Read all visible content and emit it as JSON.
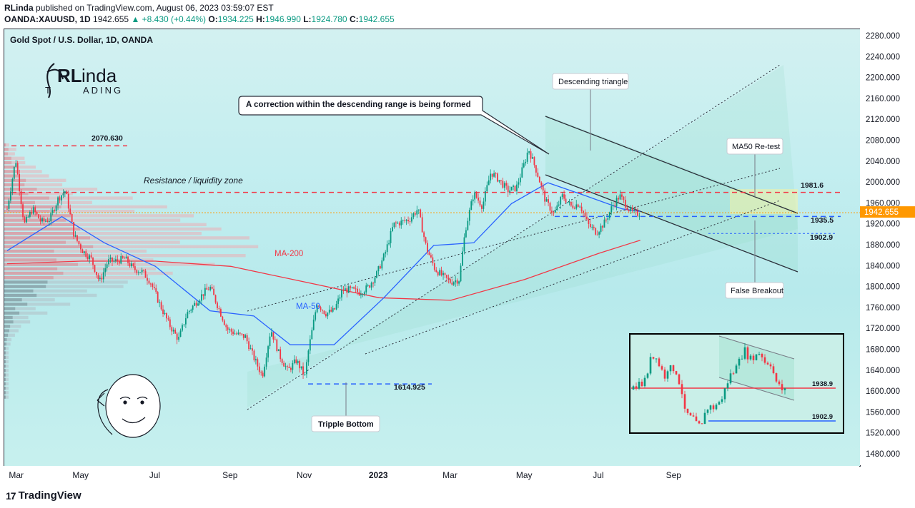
{
  "header": {
    "author": "RLinda",
    "published_text": "published on TradingView.com, August 06, 2023 03:59:07 EST",
    "symbol": "OANDA:XAUUSD, 1D",
    "last_price": "1942.655",
    "change": "▲ +8.430 (+0.44%)",
    "open_label": "O:",
    "open": "1934.225",
    "high_label": "H:",
    "high": "1946.990",
    "low_label": "L:",
    "low": "1924.780",
    "close_label": "C:",
    "close": "1942.655"
  },
  "chart_title": "Gold Spot / U.S. Dollar, 1D, OANDA",
  "logo": {
    "line1": "RLinda",
    "line2": "TRADING"
  },
  "footer_brand": "TradingView",
  "colors": {
    "up": "#089981",
    "down": "#f23645",
    "ma50": "#2962ff",
    "ma200": "#f23645",
    "price_tag": "#ff9800"
  },
  "annotations": {
    "correction_box": "A correction within the descending range is being formed",
    "descending_triangle": "Descending triangle",
    "ma50_retest": "MA50 Re-test",
    "false_breakout": "False Breakout",
    "triple_bottom": "Tripple Bottom",
    "resistance_zone": "Resistance / liquidity zone",
    "ma200_label": "MA-200",
    "ma50_label": "MA-50",
    "level_2070": "2070.630",
    "level_1981": "1981.6",
    "level_1935": "1935.5",
    "level_1902": "1902.9",
    "level_1614": "1614.925",
    "inset_1938": "1938.9",
    "inset_1902": "1902.9"
  },
  "chart_data": {
    "type": "candlestick",
    "symbol": "XAUUSD",
    "timeframe": "1D",
    "x_ticks": [
      "Mar",
      "May",
      "Jul",
      "Sep",
      "Nov",
      "2023",
      "Mar",
      "May",
      "Jul",
      "Sep"
    ],
    "y_ticks": [
      "2280.000",
      "2240.000",
      "2200.000",
      "2160.000",
      "2120.000",
      "2080.000",
      "2040.000",
      "2000.000",
      "1960.000",
      "1920.000",
      "1880.000",
      "1840.000",
      "1800.000",
      "1760.000",
      "1720.000",
      "1680.000",
      "1640.000",
      "1600.000",
      "1560.000",
      "1520.000",
      "1480.000"
    ],
    "ylim": [
      1460,
      2290
    ],
    "last_price_label": "1942.655",
    "price_path": [
      [
        "2022-03-01",
        1950
      ],
      [
        "2022-03-08",
        2045
      ],
      [
        "2022-03-15",
        1920
      ],
      [
        "2022-03-22",
        1950
      ],
      [
        "2022-03-29",
        1925
      ],
      [
        "2022-04-05",
        1930
      ],
      [
        "2022-04-12",
        1970
      ],
      [
        "2022-04-18",
        1985
      ],
      [
        "2022-04-25",
        1900
      ],
      [
        "2022-05-02",
        1870
      ],
      [
        "2022-05-09",
        1855
      ],
      [
        "2022-05-16",
        1810
      ],
      [
        "2022-05-23",
        1850
      ],
      [
        "2022-05-30",
        1850
      ],
      [
        "2022-06-06",
        1855
      ],
      [
        "2022-06-13",
        1835
      ],
      [
        "2022-06-20",
        1830
      ],
      [
        "2022-06-27",
        1810
      ],
      [
        "2022-07-05",
        1765
      ],
      [
        "2022-07-12",
        1730
      ],
      [
        "2022-07-20",
        1700
      ],
      [
        "2022-07-27",
        1750
      ],
      [
        "2022-08-03",
        1770
      ],
      [
        "2022-08-10",
        1790
      ],
      [
        "2022-08-15",
        1800
      ],
      [
        "2022-08-22",
        1760
      ],
      [
        "2022-08-29",
        1720
      ],
      [
        "2022-09-06",
        1710
      ],
      [
        "2022-09-13",
        1705
      ],
      [
        "2022-09-20",
        1665
      ],
      [
        "2022-09-27",
        1630
      ],
      [
        "2022-10-04",
        1720
      ],
      [
        "2022-10-11",
        1670
      ],
      [
        "2022-10-18",
        1640
      ],
      [
        "2022-10-25",
        1660
      ],
      [
        "2022-11-01",
        1630
      ],
      [
        "2022-11-04",
        1680
      ],
      [
        "2022-11-11",
        1770
      ],
      [
        "2022-11-18",
        1750
      ],
      [
        "2022-11-25",
        1755
      ],
      [
        "2022-12-02",
        1795
      ],
      [
        "2022-12-09",
        1795
      ],
      [
        "2022-12-16",
        1790
      ],
      [
        "2022-12-23",
        1800
      ],
      [
        "2022-12-30",
        1825
      ],
      [
        "2023-01-06",
        1865
      ],
      [
        "2023-01-13",
        1920
      ],
      [
        "2023-01-20",
        1925
      ],
      [
        "2023-01-26",
        1930
      ],
      [
        "2023-02-02",
        1950
      ],
      [
        "2023-02-09",
        1875
      ],
      [
        "2023-02-16",
        1835
      ],
      [
        "2023-02-23",
        1820
      ],
      [
        "2023-03-01",
        1810
      ],
      [
        "2023-03-08",
        1815
      ],
      [
        "2023-03-13",
        1910
      ],
      [
        "2023-03-20",
        1980
      ],
      [
        "2023-03-27",
        1955
      ],
      [
        "2023-04-03",
        2020
      ],
      [
        "2023-04-10",
        2005
      ],
      [
        "2023-04-17",
        1985
      ],
      [
        "2023-04-24",
        1990
      ],
      [
        "2023-05-01",
        2040
      ],
      [
        "2023-05-04",
        2065
      ],
      [
        "2023-05-11",
        2020
      ],
      [
        "2023-05-18",
        1965
      ],
      [
        "2023-05-25",
        1940
      ],
      [
        "2023-06-01",
        1975
      ],
      [
        "2023-06-08",
        1955
      ],
      [
        "2023-06-15",
        1960
      ],
      [
        "2023-06-22",
        1920
      ],
      [
        "2023-06-29",
        1905
      ],
      [
        "2023-07-06",
        1925
      ],
      [
        "2023-07-12",
        1955
      ],
      [
        "2023-07-18",
        1975
      ],
      [
        "2023-07-21",
        1965
      ],
      [
        "2023-07-27",
        1945
      ],
      [
        "2023-08-01",
        1940
      ],
      [
        "2023-08-04",
        1942.655
      ]
    ],
    "ma50": [
      [
        "2022-03-01",
        1870
      ],
      [
        "2022-04-15",
        1935
      ],
      [
        "2022-05-20",
        1885
      ],
      [
        "2022-07-01",
        1840
      ],
      [
        "2022-08-15",
        1755
      ],
      [
        "2022-09-20",
        1745
      ],
      [
        "2022-10-20",
        1690
      ],
      [
        "2022-11-25",
        1690
      ],
      [
        "2023-01-05",
        1780
      ],
      [
        "2023-02-15",
        1880
      ],
      [
        "2023-03-20",
        1885
      ],
      [
        "2023-04-20",
        1960
      ],
      [
        "2023-05-20",
        2000
      ],
      [
        "2023-06-20",
        1975
      ],
      [
        "2023-07-20",
        1950
      ],
      [
        "2023-08-04",
        1945
      ]
    ],
    "ma200": [
      [
        "2022-03-01",
        1845
      ],
      [
        "2022-05-01",
        1850
      ],
      [
        "2022-07-01",
        1850
      ],
      [
        "2022-09-01",
        1840
      ],
      [
        "2022-11-01",
        1810
      ],
      [
        "2023-01-01",
        1780
      ],
      [
        "2023-03-01",
        1775
      ],
      [
        "2023-05-01",
        1815
      ],
      [
        "2023-07-01",
        1865
      ],
      [
        "2023-08-04",
        1890
      ]
    ],
    "levels": [
      2070.63,
      1981.6,
      1935.5,
      1902.9,
      1614.925
    ]
  }
}
